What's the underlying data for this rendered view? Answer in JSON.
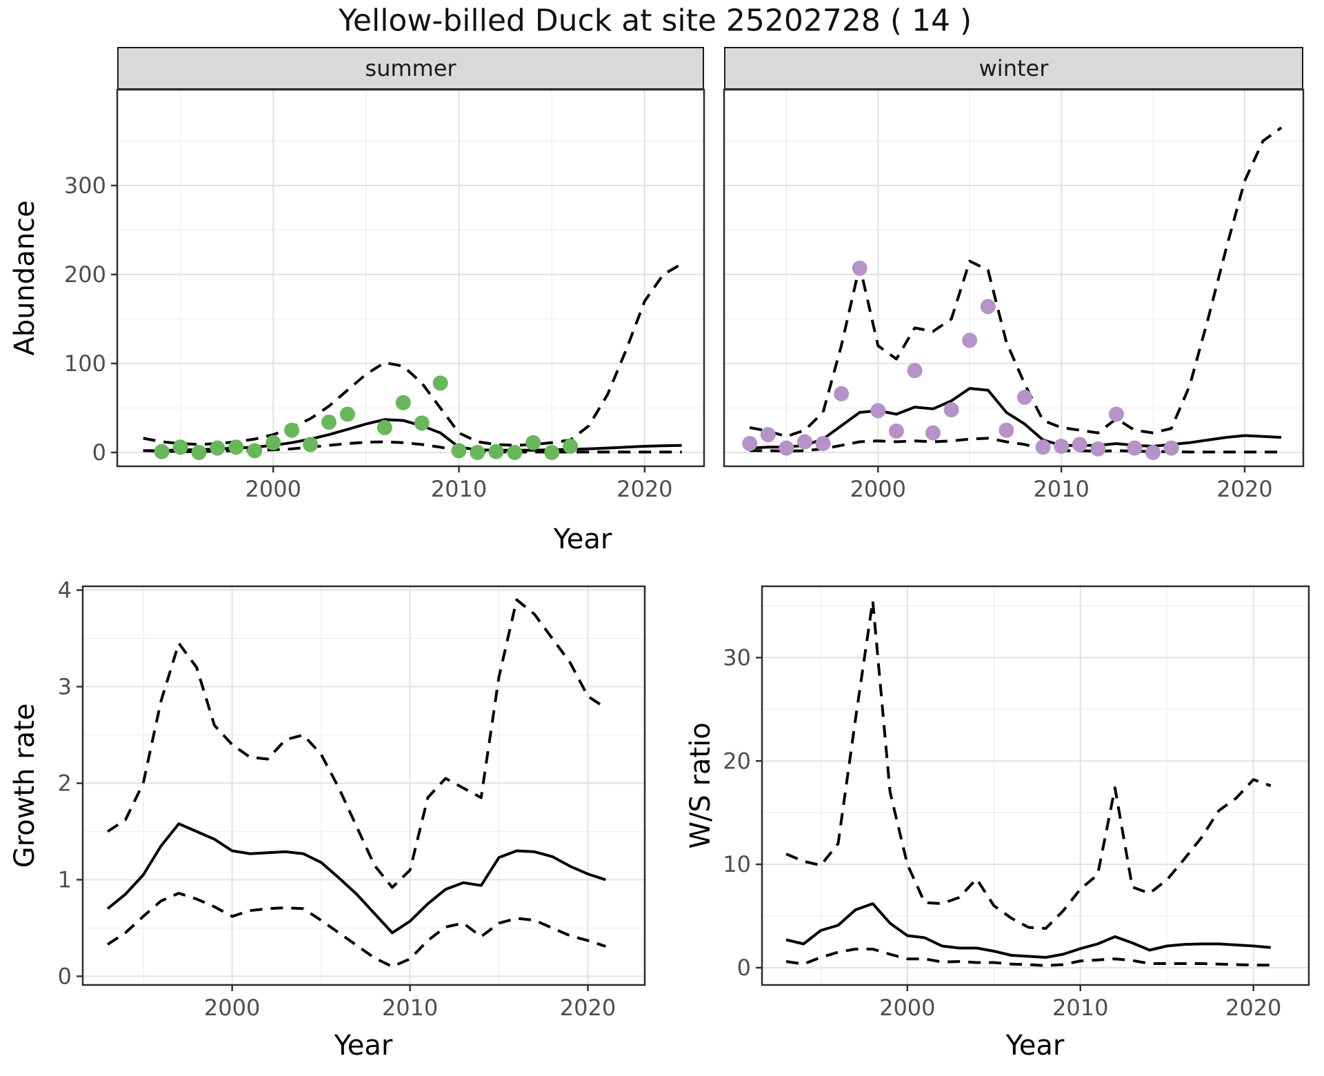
{
  "title": "Yellow-billed Duck at site 25202728 ( 14 )",
  "top_row": {
    "facets": [
      "summer",
      "winter"
    ],
    "ylabel": "Abundance",
    "xlabel": "Year"
  },
  "bottom_left": {
    "ylabel": "Growth rate",
    "xlabel": "Year"
  },
  "bottom_right": {
    "ylabel": "W/S ratio",
    "xlabel": "Year"
  },
  "colors": {
    "summer_points": "#68b75a",
    "winter_points": "#b592c8",
    "line": "#000000",
    "strip_bg": "#d9d9d9",
    "grid_major": "#e4e4e4",
    "grid_minor": "#f0f0f0",
    "axis_text": "#4d4d4d",
    "panel_border": "#2b2b2b"
  },
  "chart_data": [
    {
      "id": "abundance-summer",
      "type": "line+scatter",
      "facet": "summer",
      "xlabel": "Year",
      "ylabel": "Abundance",
      "xlim": [
        1991.6,
        2023.2
      ],
      "ylim": [
        -15.5,
        407.7
      ],
      "xticks": {
        "values": [
          2000,
          2010,
          2020
        ],
        "labels": [
          "2000",
          "2010",
          "2020"
        ],
        "minor": [
          1995,
          2005,
          2015
        ]
      },
      "yticks": {
        "values": [
          0,
          100,
          200,
          300
        ],
        "labels": [
          "0",
          "100",
          "200",
          "300"
        ],
        "minor": [
          50,
          150,
          250,
          350
        ]
      },
      "points": {
        "name": "observed summer counts",
        "color_key": "summer_points",
        "years": [
          1994,
          1995,
          1996,
          1997,
          1998,
          1999,
          2000,
          2001,
          2002,
          2003,
          2004,
          2006,
          2007,
          2008,
          2009,
          2010,
          2011,
          2012,
          2013,
          2014,
          2015,
          2016
        ],
        "values": [
          1,
          6,
          0,
          5,
          6,
          2,
          11,
          25,
          9,
          34,
          43,
          28,
          56,
          33,
          78,
          2,
          0,
          1,
          0,
          11,
          0,
          7
        ]
      },
      "series": [
        {
          "name": "modelled mean",
          "style": "solid",
          "years": [
            1993,
            1994,
            1995,
            1996,
            1997,
            1998,
            1999,
            2000,
            2001,
            2002,
            2003,
            2004,
            2005,
            2006,
            2007,
            2008,
            2009,
            2010,
            2011,
            2012,
            2013,
            2014,
            2015,
            2016,
            2017,
            2018,
            2019,
            2020,
            2021,
            2022
          ],
          "values": [
            2,
            2,
            3,
            3,
            4,
            5,
            6,
            8,
            11,
            15,
            20,
            26,
            32,
            37,
            36,
            30,
            22,
            6,
            3,
            2.5,
            2.5,
            2.5,
            3,
            3.5,
            4,
            5,
            6,
            7,
            7.5,
            8
          ]
        },
        {
          "name": "lower CI",
          "style": "dashed",
          "years": [
            1993,
            1994,
            1995,
            1996,
            1997,
            1998,
            1999,
            2000,
            2001,
            2002,
            2003,
            2004,
            2005,
            2006,
            2007,
            2008,
            2009,
            2010,
            2011,
            2012,
            2013,
            2014,
            2015,
            2016,
            2017,
            2018,
            2019,
            2020,
            2021,
            2022
          ],
          "values": [
            2,
            1.5,
            1,
            1,
            1.5,
            2,
            2.5,
            3,
            4,
            6,
            8,
            10,
            11.5,
            12,
            11,
            9,
            6,
            2,
            1,
            0.5,
            0.5,
            0.5,
            0.5,
            0.5,
            0.5,
            0.5,
            0.5,
            0.5,
            0.5,
            0.5
          ]
        },
        {
          "name": "upper CI",
          "style": "dashed",
          "years": [
            1993,
            1994,
            1995,
            1996,
            1997,
            1998,
            1999,
            2000,
            2001,
            2002,
            2003,
            2004,
            2005,
            2006,
            2007,
            2008,
            2009,
            2010,
            2011,
            2012,
            2013,
            2014,
            2015,
            2016,
            2017,
            2018,
            2019,
            2020,
            2021,
            2022
          ],
          "values": [
            16,
            12,
            10,
            9,
            10,
            12,
            15,
            20,
            28,
            38,
            52,
            70,
            88,
            101,
            97,
            78,
            50,
            22,
            12,
            9,
            8,
            9,
            11,
            14,
            30,
            65,
            115,
            170,
            200,
            212
          ]
        }
      ]
    },
    {
      "id": "abundance-winter",
      "type": "line+scatter",
      "facet": "winter",
      "xlabel": "Year",
      "ylabel": "Abundance",
      "xlim": [
        1991.6,
        2023.2
      ],
      "ylim": [
        -15.5,
        407.7
      ],
      "xticks": {
        "values": [
          2000,
          2010,
          2020
        ],
        "labels": [
          "2000",
          "2010",
          "2020"
        ],
        "minor": [
          1995,
          2005,
          2015
        ]
      },
      "yticks": {
        "values": [
          0,
          100,
          200,
          300
        ],
        "labels": [
          "0",
          "100",
          "200",
          "300"
        ],
        "minor": [
          50,
          150,
          250,
          350
        ]
      },
      "points": {
        "name": "observed winter counts",
        "color_key": "winter_points",
        "years": [
          1993,
          1994,
          1995,
          1996,
          1997,
          1998,
          1999,
          2000,
          2001,
          2002,
          2003,
          2004,
          2005,
          2006,
          2007,
          2008,
          2009,
          2010,
          2011,
          2012,
          2013,
          2014,
          2015,
          2016
        ],
        "values": [
          10,
          20,
          5,
          12,
          10,
          66,
          207,
          47,
          24,
          92,
          22,
          48,
          126,
          164,
          25,
          62,
          6,
          7,
          9,
          4,
          43,
          5,
          0,
          5
        ]
      },
      "series": [
        {
          "name": "modelled mean",
          "style": "solid",
          "years": [
            1993,
            1994,
            1995,
            1996,
            1997,
            1998,
            1999,
            2000,
            2001,
            2002,
            2003,
            2004,
            2005,
            2006,
            2007,
            2008,
            2009,
            2010,
            2011,
            2012,
            2013,
            2014,
            2015,
            2016,
            2017,
            2018,
            2019,
            2020,
            2021,
            2022
          ],
          "values": [
            5,
            6,
            6,
            8,
            15,
            30,
            45,
            47,
            43,
            51,
            49,
            58,
            72,
            70,
            45,
            32,
            14,
            8,
            8,
            8,
            10,
            8,
            7,
            9,
            11,
            14,
            17,
            19,
            18,
            17
          ]
        },
        {
          "name": "lower CI",
          "style": "dashed",
          "years": [
            1993,
            1994,
            1995,
            1996,
            1997,
            1998,
            1999,
            2000,
            2001,
            2002,
            2003,
            2004,
            2005,
            2006,
            2007,
            2008,
            2009,
            2010,
            2011,
            2012,
            2013,
            2014,
            2015,
            2016,
            2017,
            2018,
            2019,
            2020,
            2021,
            2022
          ],
          "values": [
            2,
            2,
            1.5,
            2,
            4,
            8,
            12,
            13,
            12,
            13,
            12,
            13,
            15,
            16,
            12,
            9,
            4,
            2,
            2,
            1.5,
            2,
            1.5,
            1,
            1,
            0.5,
            0.5,
            0.5,
            0.5,
            0.5,
            0.5
          ]
        },
        {
          "name": "upper CI",
          "style": "dashed",
          "years": [
            1993,
            1994,
            1995,
            1996,
            1997,
            1998,
            1999,
            2000,
            2001,
            2002,
            2003,
            2004,
            2005,
            2006,
            2007,
            2008,
            2009,
            2010,
            2011,
            2012,
            2013,
            2014,
            2015,
            2016,
            2017,
            2018,
            2019,
            2020,
            2021,
            2022
          ],
          "values": [
            28,
            24,
            18,
            25,
            45,
            120,
            210,
            120,
            105,
            140,
            136,
            150,
            215,
            205,
            124,
            77,
            36,
            28,
            25,
            22,
            38,
            25,
            22,
            27,
            75,
            150,
            230,
            305,
            350,
            365
          ]
        }
      ]
    },
    {
      "id": "growth-rate",
      "type": "line",
      "facet": "",
      "xlabel": "Year",
      "ylabel": "Growth rate",
      "xlim": [
        1991.6,
        2023.2
      ],
      "ylim": [
        -0.09,
        4.04
      ],
      "xticks": {
        "values": [
          2000,
          2010,
          2020
        ],
        "labels": [
          "2000",
          "2010",
          "2020"
        ],
        "minor": [
          1995,
          2005,
          2015
        ]
      },
      "yticks": {
        "values": [
          0,
          1,
          2,
          3,
          4
        ],
        "labels": [
          "0",
          "1",
          "2",
          "3",
          "4"
        ],
        "minor": [
          0.5,
          1.5,
          2.5,
          3.5
        ]
      },
      "series": [
        {
          "name": "growth rate mean",
          "style": "solid",
          "years": [
            1993,
            1994,
            1995,
            1996,
            1997,
            1998,
            1999,
            2000,
            2001,
            2002,
            2003,
            2004,
            2005,
            2006,
            2007,
            2008,
            2009,
            2010,
            2011,
            2012,
            2013,
            2014,
            2015,
            2016,
            2017,
            2018,
            2019,
            2020,
            2021
          ],
          "values": [
            0.7,
            0.85,
            1.05,
            1.35,
            1.58,
            1.5,
            1.42,
            1.3,
            1.27,
            1.28,
            1.29,
            1.27,
            1.18,
            1.02,
            0.85,
            0.65,
            0.45,
            0.57,
            0.75,
            0.9,
            0.97,
            0.94,
            1.23,
            1.3,
            1.29,
            1.24,
            1.14,
            1.06,
            1.0
          ]
        },
        {
          "name": "lower CI",
          "style": "dashed",
          "years": [
            1993,
            1994,
            1995,
            1996,
            1997,
            1998,
            1999,
            2000,
            2001,
            2002,
            2003,
            2004,
            2005,
            2006,
            2007,
            2008,
            2009,
            2010,
            2011,
            2012,
            2013,
            2014,
            2015,
            2016,
            2017,
            2018,
            2019,
            2020,
            2021
          ],
          "values": [
            0.33,
            0.45,
            0.62,
            0.78,
            0.86,
            0.8,
            0.72,
            0.62,
            0.68,
            0.7,
            0.71,
            0.7,
            0.58,
            0.45,
            0.32,
            0.19,
            0.1,
            0.18,
            0.37,
            0.51,
            0.55,
            0.41,
            0.55,
            0.6,
            0.58,
            0.5,
            0.42,
            0.37,
            0.31
          ]
        },
        {
          "name": "upper CI",
          "style": "dashed",
          "years": [
            1993,
            1994,
            1995,
            1996,
            1997,
            1998,
            1999,
            2000,
            2001,
            2002,
            2003,
            2004,
            2005,
            2006,
            2007,
            2008,
            2009,
            2010,
            2011,
            2012,
            2013,
            2014,
            2015,
            2016,
            2017,
            2018,
            2019,
            2020,
            2021
          ],
          "values": [
            1.5,
            1.62,
            2.0,
            2.85,
            3.45,
            3.2,
            2.6,
            2.4,
            2.27,
            2.25,
            2.45,
            2.5,
            2.3,
            1.95,
            1.55,
            1.15,
            0.92,
            1.1,
            1.85,
            2.05,
            1.95,
            1.85,
            3.1,
            3.9,
            3.75,
            3.5,
            3.25,
            2.9,
            2.78
          ]
        }
      ]
    },
    {
      "id": "ws-ratio",
      "type": "line",
      "facet": "",
      "xlabel": "Year",
      "ylabel": "W/S ratio",
      "xlim": [
        1991.6,
        2023.2
      ],
      "ylim": [
        -1.67,
        36.9
      ],
      "xticks": {
        "values": [
          2000,
          2010,
          2020
        ],
        "labels": [
          "2000",
          "2010",
          "2020"
        ],
        "minor": [
          1995,
          2005,
          2015
        ]
      },
      "yticks": {
        "values": [
          0,
          10,
          20,
          30
        ],
        "labels": [
          "0",
          "10",
          "20",
          "30"
        ],
        "minor": [
          5,
          15,
          25,
          35
        ]
      },
      "series": [
        {
          "name": "W/S ratio mean",
          "style": "solid",
          "years": [
            1993,
            1994,
            1995,
            1996,
            1997,
            1998,
            1999,
            2000,
            2001,
            2002,
            2003,
            2004,
            2005,
            2006,
            2007,
            2008,
            2009,
            2010,
            2011,
            2012,
            2013,
            2014,
            2015,
            2016,
            2017,
            2018,
            2019,
            2020,
            2021
          ],
          "values": [
            2.7,
            2.3,
            3.6,
            4.1,
            5.6,
            6.2,
            4.3,
            3.1,
            2.9,
            2.1,
            1.9,
            1.9,
            1.6,
            1.2,
            1.1,
            1.0,
            1.3,
            1.85,
            2.3,
            3.0,
            2.4,
            1.7,
            2.1,
            2.25,
            2.3,
            2.3,
            2.2,
            2.1,
            1.95
          ]
        },
        {
          "name": "lower CI",
          "style": "dashed",
          "years": [
            1993,
            1994,
            1995,
            1996,
            1997,
            1998,
            1999,
            2000,
            2001,
            2002,
            2003,
            2004,
            2005,
            2006,
            2007,
            2008,
            2009,
            2010,
            2011,
            2012,
            2013,
            2014,
            2015,
            2016,
            2017,
            2018,
            2019,
            2020,
            2021
          ],
          "values": [
            0.6,
            0.35,
            1.0,
            1.5,
            1.8,
            1.8,
            1.3,
            0.85,
            0.85,
            0.55,
            0.6,
            0.5,
            0.5,
            0.35,
            0.3,
            0.2,
            0.3,
            0.65,
            0.75,
            0.85,
            0.7,
            0.4,
            0.4,
            0.4,
            0.4,
            0.35,
            0.3,
            0.25,
            0.25
          ]
        },
        {
          "name": "upper CI",
          "style": "dashed",
          "years": [
            1993,
            1994,
            1995,
            1996,
            1997,
            1998,
            1999,
            2000,
            2001,
            2002,
            2003,
            2004,
            2005,
            2006,
            2007,
            2008,
            2009,
            2010,
            2011,
            2012,
            2013,
            2014,
            2015,
            2016,
            2017,
            2018,
            2019,
            2020,
            2021
          ],
          "values": [
            11,
            10.3,
            9.9,
            12,
            24,
            35.5,
            17,
            10,
            6.3,
            6.2,
            6.8,
            8.6,
            6.0,
            4.8,
            3.9,
            3.8,
            5.5,
            7.6,
            9.0,
            17.4,
            7.8,
            7.2,
            8.5,
            10.5,
            12.6,
            15.2,
            16.4,
            18.2,
            17.6
          ]
        }
      ]
    }
  ]
}
